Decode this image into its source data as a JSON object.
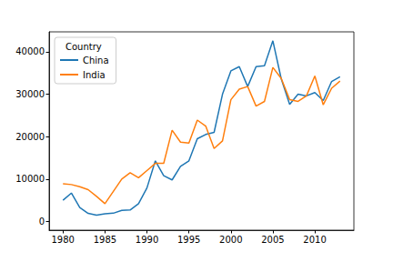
{
  "chart_data": {
    "type": "line",
    "legend_title": "Country",
    "legend": "upper left",
    "grid": false,
    "x": [
      1980,
      1981,
      1982,
      1983,
      1984,
      1985,
      1986,
      1987,
      1988,
      1989,
      1990,
      1991,
      1992,
      1993,
      1994,
      1995,
      1996,
      1997,
      1998,
      1999,
      2000,
      2001,
      2002,
      2003,
      2004,
      2005,
      2006,
      2007,
      2008,
      2009,
      2010,
      2011,
      2012,
      2013
    ],
    "series": [
      {
        "name": "China",
        "color": "#1f77b4",
        "values": [
          5000,
          6700,
          3300,
          1900,
          1500,
          1800,
          1950,
          2600,
          2700,
          4200,
          7900,
          14300,
          10800,
          9800,
          13000,
          14300,
          19500,
          20500,
          21000,
          30000,
          35500,
          36500,
          31800,
          36500,
          36700,
          42600,
          33600,
          27600,
          30000,
          29600,
          30400,
          28500,
          33000,
          34100
        ]
      },
      {
        "name": "India",
        "color": "#ff7f0e",
        "values": [
          8900,
          8700,
          8200,
          7500,
          5900,
          4200,
          7100,
          10000,
          11500,
          10300,
          12000,
          13700,
          13700,
          21500,
          18700,
          18500,
          23900,
          22500,
          17200,
          19000,
          28700,
          31200,
          31800,
          27200,
          28300,
          36300,
          33700,
          28700,
          28300,
          29600,
          34300,
          27500,
          31400,
          33100
        ]
      }
    ],
    "xlim": [
      1978.35,
      2014.65
    ],
    "xticks": [
      1980,
      1985,
      1990,
      1995,
      2000,
      2005,
      2010
    ],
    "ylim": [
      -2050,
      44700
    ],
    "yticks": [
      0,
      10000,
      20000,
      30000,
      40000
    ]
  }
}
